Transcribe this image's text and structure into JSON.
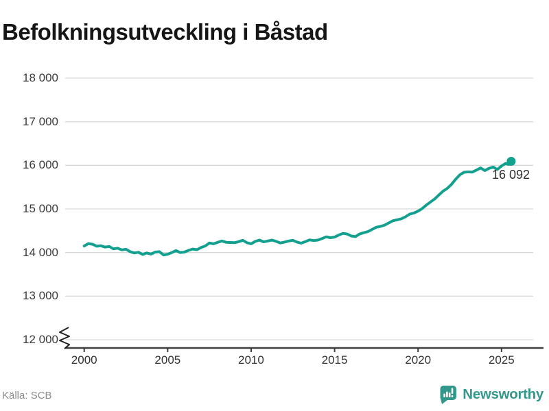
{
  "title": "Befolkningsutveckling i Båstad",
  "source": "Källa: SCB",
  "branding": {
    "name": "Newsworthy",
    "icon": "newsworthy-pin-barchart-icon"
  },
  "colors": {
    "line": "#13a08f",
    "grid": "#d9d9d9",
    "axis": "#3f3f3f",
    "title_text": "#161616",
    "tick_text": "#3a3a3a",
    "x_tick_text": "#333333",
    "end_label_text": "#2e2e2e",
    "source_text": "#8c8c8c",
    "brand_teal": "#31988b"
  },
  "chart_data": {
    "type": "line",
    "title": "Befolkningsutveckling i Båstad",
    "xlabel": "",
    "ylabel": "",
    "xlim": [
      1998.86,
      2026.9
    ],
    "ylim": [
      12000,
      18000
    ],
    "axis_break": true,
    "grid": "horizontal",
    "legend_position": "none",
    "x_ticks": [
      {
        "label": "2000",
        "value": 2000
      },
      {
        "label": "2005",
        "value": 2005
      },
      {
        "label": "2010",
        "value": 2010
      },
      {
        "label": "2015",
        "value": 2015
      },
      {
        "label": "2020",
        "value": 2020
      },
      {
        "label": "2025",
        "value": 2025
      }
    ],
    "y_ticks": [
      {
        "label": "12 000",
        "value": 12000
      },
      {
        "label": "13 000",
        "value": 13000
      },
      {
        "label": "14 000",
        "value": 14000
      },
      {
        "label": "15 000",
        "value": 15000
      },
      {
        "label": "16 000",
        "value": 16000
      },
      {
        "label": "17 000",
        "value": 17000
      },
      {
        "label": "18 000",
        "value": 18000
      }
    ],
    "last_value": 16092,
    "last_point_label": "16 092",
    "series": [
      {
        "x": [
          2000,
          2000.25,
          2000.5,
          2000.75,
          2001,
          2001.25,
          2001.5,
          2001.75,
          2002,
          2002.25,
          2002.5,
          2002.75,
          2003,
          2003.25,
          2003.5,
          2003.75,
          2004,
          2004.25,
          2004.5,
          2004.75,
          2005,
          2005.25,
          2005.5,
          2005.75,
          2006,
          2006.25,
          2006.5,
          2006.75,
          2007,
          2007.25,
          2007.5,
          2007.75,
          2008,
          2008.25,
          2008.5,
          2008.75,
          2009,
          2009.25,
          2009.5,
          2009.75,
          2010,
          2010.25,
          2010.5,
          2010.75,
          2011,
          2011.25,
          2011.5,
          2011.75,
          2012,
          2012.25,
          2012.5,
          2012.75,
          2013,
          2013.25,
          2013.5,
          2013.75,
          2014,
          2014.25,
          2014.5,
          2014.75,
          2015,
          2015.25,
          2015.5,
          2015.75,
          2016,
          2016.25,
          2016.5,
          2016.75,
          2017,
          2017.25,
          2017.5,
          2017.75,
          2018,
          2018.25,
          2018.5,
          2018.75,
          2019,
          2019.25,
          2019.5,
          2019.75,
          2020,
          2020.25,
          2020.5,
          2020.75,
          2021,
          2021.25,
          2021.5,
          2021.75,
          2022,
          2022.25,
          2022.5,
          2022.75,
          2023,
          2023.25,
          2023.5,
          2023.75,
          2024,
          2024.25,
          2024.5,
          2024.75,
          2025,
          2025.25,
          2025.42,
          2025.58
        ],
        "y": [
          14150,
          14205,
          14190,
          14145,
          14155,
          14125,
          14140,
          14085,
          14100,
          14060,
          14075,
          14020,
          13990,
          14005,
          13955,
          13990,
          13965,
          14010,
          14020,
          13945,
          13960,
          14000,
          14045,
          14000,
          14010,
          14050,
          14080,
          14065,
          14115,
          14150,
          14220,
          14200,
          14235,
          14265,
          14235,
          14230,
          14225,
          14250,
          14280,
          14225,
          14200,
          14255,
          14285,
          14245,
          14265,
          14285,
          14255,
          14220,
          14240,
          14265,
          14280,
          14240,
          14215,
          14250,
          14290,
          14275,
          14285,
          14320,
          14360,
          14340,
          14355,
          14400,
          14440,
          14425,
          14380,
          14365,
          14425,
          14455,
          14480,
          14530,
          14580,
          14600,
          14630,
          14680,
          14730,
          14750,
          14775,
          14820,
          14880,
          14905,
          14950,
          15010,
          15090,
          15160,
          15230,
          15320,
          15410,
          15470,
          15560,
          15680,
          15780,
          15840,
          15850,
          15845,
          15890,
          15940,
          15880,
          15930,
          15960,
          15905,
          15985,
          16045,
          16020,
          16092
        ]
      }
    ]
  }
}
